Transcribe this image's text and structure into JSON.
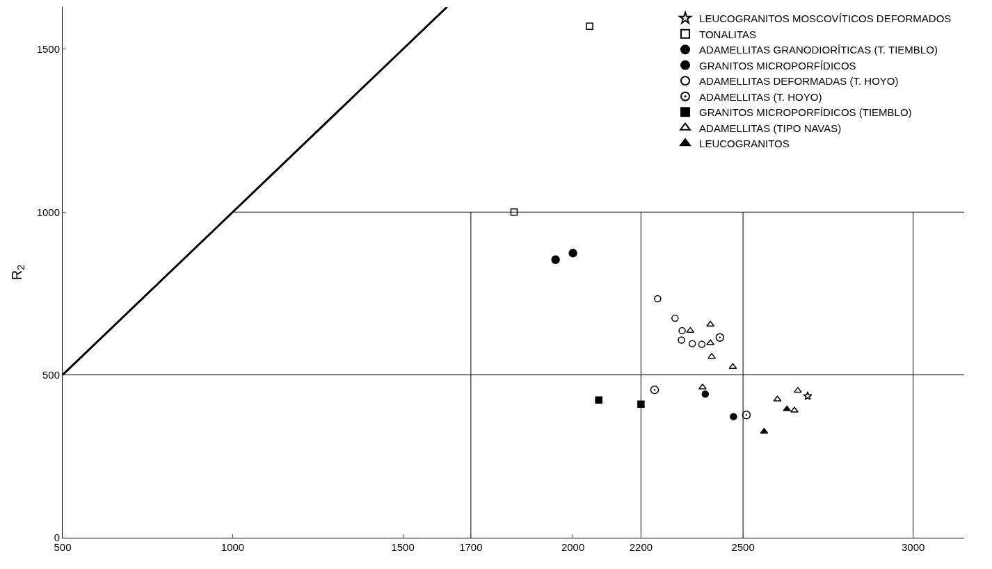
{
  "chart_data": {
    "type": "scatter",
    "ylabel": "R$_{2}$",
    "xlim": [
      500,
      3150
    ],
    "ylim": [
      0,
      1630
    ],
    "xticks": [
      500,
      1000,
      1500,
      1700,
      2000,
      2200,
      2500,
      3000
    ],
    "yticks": [
      0,
      500,
      1000,
      1500
    ],
    "legend": "top right",
    "series": [
      {
        "type": "line",
        "color": "#000000",
        "x": [
          500,
          1630
        ],
        "values": [
          500,
          1630
        ],
        "marker": "none"
      },
      {
        "type": "line",
        "color": "#000000",
        "x": [
          1000,
          3150
        ],
        "values": [
          1000,
          1000
        ],
        "marker": "none"
      },
      {
        "type": "line",
        "color": "#000000",
        "x": [
          500,
          3150
        ],
        "values": [
          500,
          500
        ],
        "marker": "none"
      },
      {
        "type": "line",
        "color": "#000000",
        "x": [
          1700,
          1700
        ],
        "values": [
          0,
          1000
        ],
        "marker": "none"
      },
      {
        "type": "line",
        "color": "#000000",
        "x": [
          2200,
          2200
        ],
        "values": [
          0,
          1000
        ],
        "marker": "none"
      },
      {
        "type": "line",
        "color": "#000000",
        "x": [
          2500,
          2500
        ],
        "values": [
          0,
          1000
        ],
        "marker": "none"
      },
      {
        "type": "line",
        "color": "#000000",
        "x": [
          3000,
          3000
        ],
        "values": [
          0,
          1000
        ],
        "marker": "none"
      },
      {
        "name": "LEUCOGRANITOS MOSCOVÍTICOS DEFORMADOS",
        "color": "#000000",
        "marker": "star-open",
        "x": [
          2690
        ],
        "values": [
          435
        ]
      },
      {
        "name": "TONALITAS",
        "color": "#000000",
        "marker": "square-open",
        "x": [
          2049,
          1827
        ],
        "values": [
          1571,
          1000
        ]
      },
      {
        "name": "ADAMELLITAS GRANODIORÍTICAS (T. TIEMBLO)",
        "color": "#000000",
        "marker": "circle-dot",
        "x": [
          1949,
          2000
        ],
        "values": [
          854,
          874
        ]
      },
      {
        "name": "GRANITOS MICROPORFÍDICOS",
        "color": "#000000",
        "marker": "circle",
        "x": [
          2389,
          2472
        ],
        "values": [
          441,
          372
        ]
      },
      {
        "name": "ADAMELLITAS DEFORMADAS (T. HOYO)",
        "color": "#000000",
        "marker": "circle-open",
        "x": [
          2249,
          2300,
          2321,
          2319,
          2351,
          2379
        ],
        "values": [
          734,
          674,
          636,
          607,
          596,
          594
        ]
      },
      {
        "name": "ADAMELLITAS (T. HOYO)",
        "color": "#000000",
        "marker": "circle-open-dot",
        "x": [
          2432,
          2240,
          2510
        ],
        "values": [
          615,
          454,
          377
        ]
      },
      {
        "name": "GRANITOS MICROPORFÍDICOS (TIEMBLO)",
        "color": "#000000",
        "marker": "square",
        "x": [
          2076,
          2200
        ],
        "values": [
          423,
          410
        ]
      },
      {
        "name": "ADAMELLITAS (TIPO NAVAS)",
        "color": "#000000",
        "marker": "triangle-up-open",
        "x": [
          2345,
          2404,
          2404,
          2408,
          2470,
          2381,
          2601,
          2661,
          2651
        ],
        "values": [
          636,
          655,
          598,
          556,
          525,
          462,
          425,
          452,
          391
        ]
      },
      {
        "name": "LEUCOGRANITOS",
        "color": "#000000",
        "marker": "triangle-up",
        "x": [
          2629,
          2562
        ],
        "values": [
          395,
          326
        ]
      }
    ]
  }
}
